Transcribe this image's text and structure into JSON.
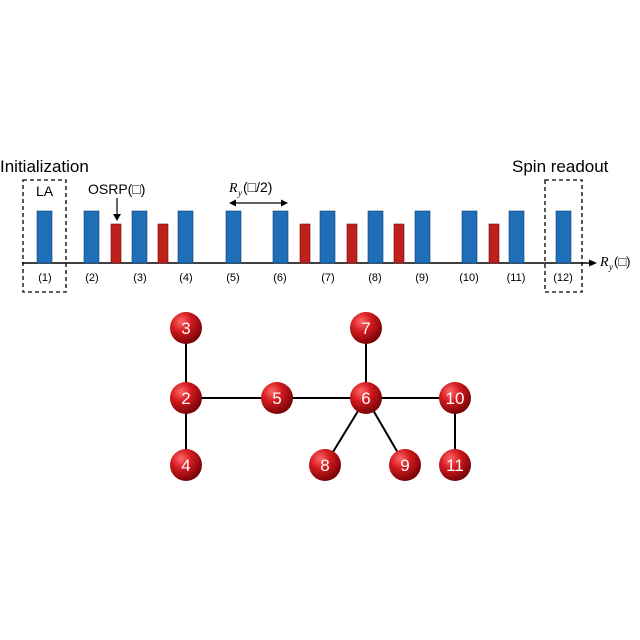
{
  "labels": {
    "initialization": "Initialization",
    "spin_readout": "Spin readout",
    "la": "LA",
    "osrp": "OSRP(□)",
    "ry_half": "(□/2)",
    "ry_axis": "(□)",
    "ry_symbol": "R",
    "ry_sub": "y"
  },
  "steps": [
    "(1)",
    "(2)",
    "(3)",
    "(4)",
    "(5)",
    "(6)",
    "(7)",
    "(8)",
    "(9)",
    "(10)",
    "(11)",
    "(12)"
  ],
  "colors": {
    "blue_pulse": "#1f6fb8",
    "red_pulse": "#c0201c",
    "node": "#c8141a"
  },
  "graph": {
    "nodes": [
      "2",
      "3",
      "4",
      "5",
      "6",
      "7",
      "8",
      "9",
      "10",
      "11"
    ],
    "edges": [
      [
        "2",
        "3"
      ],
      [
        "2",
        "4"
      ],
      [
        "2",
        "5"
      ],
      [
        "5",
        "6"
      ],
      [
        "6",
        "7"
      ],
      [
        "6",
        "8"
      ],
      [
        "6",
        "9"
      ],
      [
        "6",
        "10"
      ],
      [
        "10",
        "11"
      ]
    ]
  }
}
